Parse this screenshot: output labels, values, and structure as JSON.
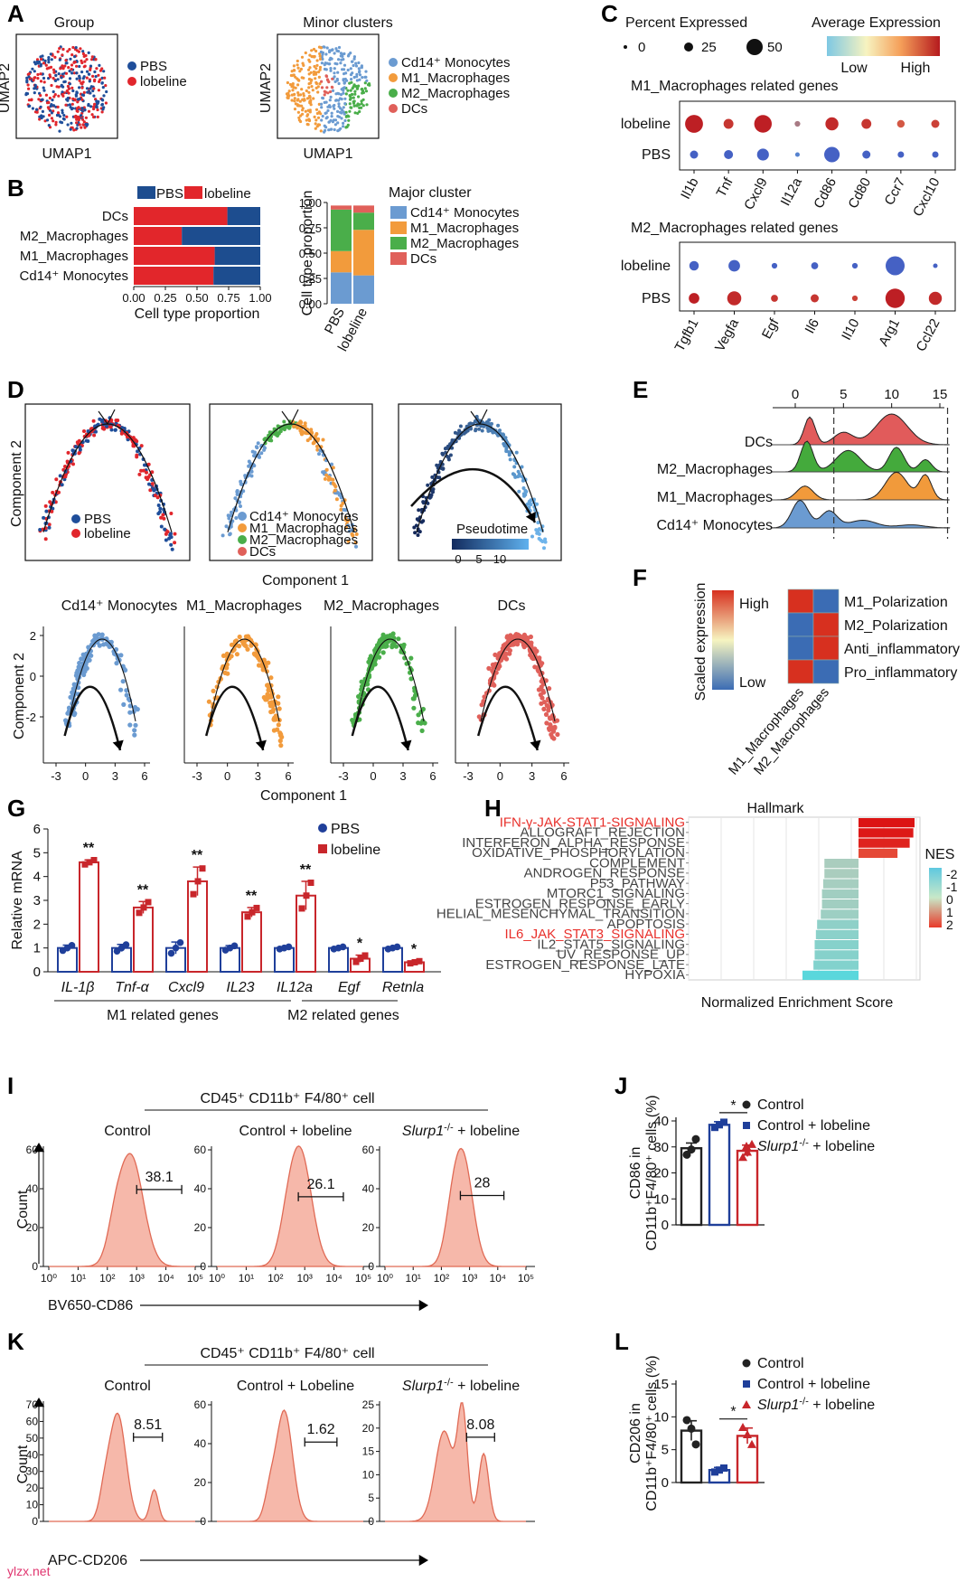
{
  "panel_labels": [
    "A",
    "B",
    "C",
    "D",
    "E",
    "F",
    "G",
    "H",
    "I",
    "J",
    "K",
    "L"
  ],
  "watermark": "ylzx.net",
  "chart_data": [
    {
      "panel": "A",
      "type": "scatter",
      "plots": [
        {
          "title": "Group",
          "xlabel": "UMAP1",
          "ylabel": "UMAP2",
          "legend": [
            {
              "name": "PBS",
              "color": "#1f4e9a"
            },
            {
              "name": "lobeline",
              "color": "#e1262c"
            }
          ]
        },
        {
          "title": "Minor clusters",
          "xlabel": "UMAP1",
          "ylabel": "UMAP2",
          "legend": [
            {
              "name": "Cd14⁺ Monocytes",
              "color": "#6b9bd1"
            },
            {
              "name": "M1_Macrophages",
              "color": "#f29b3c"
            },
            {
              "name": "M2_Macrophages",
              "color": "#4aae4a"
            },
            {
              "name": "DCs",
              "color": "#e0605a"
            }
          ]
        }
      ]
    },
    {
      "panel": "B",
      "type": "bar",
      "left": {
        "xlabel": "Cell type proportion",
        "xticks": [
          "0.00",
          "0.25",
          "0.50",
          "0.75",
          "1.00"
        ],
        "legend": [
          {
            "name": "PBS",
            "color": "#1d4d8f"
          },
          {
            "name": "lobeline",
            "color": "#e2262b"
          }
        ],
        "categories": [
          "DCs",
          "M2_Macrophages",
          "M1_Macrophages",
          "Cd14⁺ Monocytes"
        ],
        "lobeline": [
          0.74,
          0.38,
          0.64,
          0.63
        ]
      },
      "right": {
        "ylabel": "Cell type proportion",
        "yticks": [
          "0.00",
          "0.25",
          "0.50",
          "0.75",
          "1.00"
        ],
        "legend_title": "Major cluster",
        "legend": [
          {
            "name": "Cd14⁺ Monocytes",
            "color": "#6b9bd1"
          },
          {
            "name": "M1_Macrophages",
            "color": "#f29b3c"
          },
          {
            "name": "M2_Macrophages",
            "color": "#4aae4a"
          },
          {
            "name": "DCs",
            "color": "#e0605a"
          }
        ],
        "categories": [
          "PBS",
          "lobeline"
        ],
        "series": [
          {
            "name": "Cd14⁺ Monocytes",
            "values": [
              0.31,
              0.28
            ]
          },
          {
            "name": "M1_Macrophages",
            "values": [
              0.21,
              0.45
            ]
          },
          {
            "name": "M2_Macrophages",
            "values": [
              0.41,
              0.17
            ]
          },
          {
            "name": "DCs",
            "values": [
              0.04,
              0.07
            ]
          }
        ]
      }
    },
    {
      "panel": "C",
      "type": "scatter",
      "size_legend_title": "Percent Expressed",
      "size_legend_values": [
        "0",
        "25",
        "50"
      ],
      "color_legend_title": "Average Expression",
      "color_legend_low": "Low",
      "color_legend_high": "High",
      "groups": [
        {
          "title": "M1_Macrophages related genes",
          "rows": [
            "lobeline",
            "PBS"
          ],
          "genes": [
            "Il1b",
            "Tnf",
            "Cxcl9",
            "Il12a",
            "Cd86",
            "Cd80",
            "Ccr7",
            "Cxcl10"
          ],
          "lobeline": [
            [
              42,
              0.95
            ],
            [
              10,
              0.85
            ],
            [
              40,
              0.95
            ],
            [
              2,
              0.5
            ],
            [
              20,
              0.9
            ],
            [
              10,
              0.85
            ],
            [
              5,
              0.7
            ],
            [
              6,
              0.8
            ]
          ],
          "PBS": [
            [
              6,
              0.1
            ],
            [
              8,
              0.1
            ],
            [
              16,
              0.1
            ],
            [
              1,
              0.3
            ],
            [
              30,
              0.1
            ],
            [
              6,
              0.1
            ],
            [
              3,
              0.1
            ],
            [
              3,
              0.1
            ]
          ]
        },
        {
          "title": "M2_Macrophages related genes",
          "rows": [
            "lobeline",
            "PBS"
          ],
          "genes": [
            "Tgfb1",
            "Vegfa",
            "Egf",
            "Il6",
            "Il10",
            "Arg1",
            "Ccl22"
          ],
          "lobeline": [
            [
              9,
              0.1
            ],
            [
              15,
              0.1
            ],
            [
              2,
              0.1
            ],
            [
              4,
              0.1
            ],
            [
              2,
              0.1
            ],
            [
              48,
              0.1
            ],
            [
              1,
              0.1
            ]
          ],
          "PBS": [
            [
              12,
              0.95
            ],
            [
              24,
              0.9
            ],
            [
              4,
              0.85
            ],
            [
              6,
              0.85
            ],
            [
              2,
              0.8
            ],
            [
              50,
              0.95
            ],
            [
              20,
              0.9
            ]
          ]
        }
      ]
    },
    {
      "panel": "D",
      "type": "scatter",
      "xlabel": "Component 1",
      "ylabel": "Component 2",
      "top_legends": [
        [
          {
            "name": "PBS",
            "color": "#1f4e9a"
          },
          {
            "name": "lobeline",
            "color": "#e1262c"
          }
        ],
        [
          {
            "name": "Cd14⁺ Monocytes",
            "color": "#6b9bd1"
          },
          {
            "name": "M1_Macrophages",
            "color": "#f29b3c"
          },
          {
            "name": "M2_Macrophages",
            "color": "#4aae4a"
          },
          {
            "name": "DCs",
            "color": "#e0605a"
          }
        ]
      ],
      "pseudotime_title": "Pseudotime",
      "pseudotime_ticks": [
        "0",
        "5",
        "10"
      ],
      "bottom_titles": [
        "Cd14⁺ Monocytes",
        "M1_Macrophages",
        "M2_Macrophages",
        "DCs"
      ],
      "bottom_colors": [
        "#6b9bd1",
        "#f29b3c",
        "#4aae4a",
        "#e0605a"
      ],
      "xticks": [
        "-3",
        "0",
        "3",
        "6"
      ],
      "yticks": [
        "2",
        "0",
        "-2"
      ]
    },
    {
      "panel": "E",
      "type": "area",
      "xticks": [
        "0",
        "5",
        "10",
        "15"
      ],
      "rows": [
        {
          "name": "DCs",
          "color": "#e15b5b"
        },
        {
          "name": "M2_Macrophages",
          "color": "#44aa3c"
        },
        {
          "name": "M1_Macrophages",
          "color": "#f19a3b"
        },
        {
          "name": "Cd14⁺ Monocytes",
          "color": "#6b9bd1"
        }
      ]
    },
    {
      "panel": "F",
      "type": "heatmap",
      "legend_title": "Scaled expression",
      "legend_high": "High",
      "legend_low": "Low",
      "rows": [
        "M1_Polarization",
        "M2_Polarization",
        "Anti_inflammatory",
        "Pro_inflammatory"
      ],
      "columns": [
        "M1_Macrophages",
        "M2_Macrophages"
      ],
      "values": [
        [
          1,
          -1
        ],
        [
          -1,
          1
        ],
        [
          -1,
          1
        ],
        [
          1,
          -1
        ]
      ]
    },
    {
      "panel": "G",
      "type": "bar",
      "ylabel": "Relative mRNA",
      "ylim": [
        0,
        6
      ],
      "yticks": [
        "0",
        "1",
        "2",
        "3",
        "4",
        "5",
        "6"
      ],
      "categories": [
        "IL-1β",
        "Tnf-α",
        "Cxcl9",
        "IL23",
        "IL12a",
        "Egf",
        "Retnla"
      ],
      "group_labels": [
        "M1  related genes",
        "M2  related genes"
      ],
      "series": [
        {
          "name": "PBS",
          "color": "#1f3f9a",
          "values": [
            1,
            1,
            1,
            1,
            1,
            1,
            1
          ],
          "errors": [
            0.12,
            0.15,
            0.25,
            0.1,
            0.05,
            0.05,
            0.05
          ]
        },
        {
          "name": "lobeline",
          "color": "#c8262b",
          "values": [
            4.6,
            2.7,
            3.8,
            2.5,
            3.2,
            0.55,
            0.4
          ],
          "errors": [
            0.1,
            0.25,
            0.6,
            0.2,
            0.6,
            0.15,
            0.05
          ]
        }
      ],
      "significance": [
        "**",
        "**",
        "**",
        "**",
        "**",
        "*",
        "*"
      ]
    },
    {
      "panel": "H",
      "type": "bar",
      "title": "Hallmark",
      "xlabel": "Normalized Enrichment Score",
      "legend_title": "NES",
      "legend_ticks": [
        "-2",
        "-1",
        "0",
        "1",
        "2"
      ],
      "categories": [
        "IFN-γ-JAK-STAT1-SIGNALING",
        "ALLOGRAFT_REJECTION",
        "INTERFERON_ALPHA_RESPONSE",
        "OXIDATIVE_PHOSPHORYLATION",
        "COMPLEMENT",
        "ANDROGEN_RESPONSE",
        "P53_PATHWAY",
        "MTORC1_SIGNALING",
        "ESTROGEN_RESPONSE_EARLY",
        "HELIAL_MESENCHYMAL_TRANSITION",
        "APOPTOSIS",
        "IL6_JAK_STAT3_SIGNALING",
        "IL2_STAT5_SIGNALING",
        "UV_RESPONSE_UP",
        "ESTROGEN_RESPONSE_LATE",
        "HYPOXIA"
      ],
      "highlight": [
        0,
        11
      ],
      "values": [
        2.3,
        2.25,
        2.1,
        1.6,
        -1.4,
        -1.4,
        -1.45,
        -1.5,
        -1.5,
        -1.55,
        -1.7,
        -1.75,
        -1.8,
        -1.8,
        -1.85,
        -2.3
      ]
    },
    {
      "panel": "I",
      "type": "area",
      "header": "CD45⁺ CD11b⁺ F4/80⁺ cell",
      "xlabel": "BV650-CD86",
      "ylabel": "Count",
      "xticks": [
        "10⁰",
        "10¹",
        "10²",
        "10³",
        "10⁴",
        "10⁵"
      ],
      "yticks": [
        "0",
        "20",
        "40",
        "60"
      ],
      "plots": [
        {
          "title": "Control",
          "gate": "38.1"
        },
        {
          "title": "Control + lobeline",
          "gate": "26.1"
        },
        {
          "title_gene": "Slurp1",
          "title_sup": "-/-",
          "title_rest": " + lobeline",
          "gate": "28"
        }
      ]
    },
    {
      "panel": "J",
      "type": "bar",
      "ylabel_1": "CD86 in",
      "ylabel_2": "CD11b⁺F4/80⁺ cells (%)",
      "ylim": [
        0,
        40
      ],
      "yticks": [
        "0",
        "10",
        "20",
        "30",
        "40"
      ],
      "legend": [
        {
          "name": "Control",
          "color": "#222222"
        },
        {
          "name": "Control + lobeline",
          "color": "#1f3f9a"
        },
        {
          "name_gene": "Slurp1",
          "name_sup": "-/-",
          "name_rest": " + lobeline",
          "color": "#c8262b"
        }
      ],
      "values": [
        29.5,
        38.5,
        28.5
      ],
      "errors": [
        2.0,
        1.2,
        2.2
      ],
      "points": [
        [
          27,
          29,
          33
        ],
        [
          37.5,
          38.5,
          39.5
        ],
        [
          26,
          28,
          31
        ]
      ],
      "significance": "*"
    },
    {
      "panel": "K",
      "type": "area",
      "header": "CD45⁺ CD11b⁺ F4/80⁺ cell",
      "xlabel": "APC-CD206",
      "ylabel": "Count",
      "yticks_1": [
        "0",
        "10",
        "20",
        "30",
        "40",
        "50",
        "60",
        "70"
      ],
      "yticks_2": [
        "0",
        "20",
        "40",
        "60"
      ],
      "yticks_3": [
        "0",
        "5",
        "10",
        "15",
        "20",
        "25"
      ],
      "plots": [
        {
          "title": "Control",
          "gate": "8.51"
        },
        {
          "title": "Control + Lobeline",
          "gate": "1.62"
        },
        {
          "title_gene": "Slurp1",
          "title_sup": "-/-",
          "title_rest": " + lobeline",
          "gate": "8.08"
        }
      ]
    },
    {
      "panel": "L",
      "type": "bar",
      "ylabel_1": "CD206 in",
      "ylabel_2": "CD11b⁺F4/80⁺ cells (%)",
      "ylim": [
        0,
        15
      ],
      "yticks": [
        "0",
        "5",
        "10",
        "15"
      ],
      "legend": [
        {
          "name": "Control",
          "color": "#222222"
        },
        {
          "name": "Control + lobeline",
          "color": "#1f3f9a"
        },
        {
          "name_gene": "Slurp1",
          "name_sup": "-/-",
          "name_rest": " + lobeline",
          "color": "#c8262b"
        }
      ],
      "values": [
        7.9,
        1.9,
        7.1
      ],
      "errors": [
        1.5,
        0.4,
        1.2
      ],
      "points": [
        [
          9.5,
          8.2,
          5.8
        ],
        [
          1.6,
          1.9,
          2.2
        ],
        [
          8.4,
          7.3,
          5.8
        ]
      ],
      "significance": "*"
    }
  ]
}
